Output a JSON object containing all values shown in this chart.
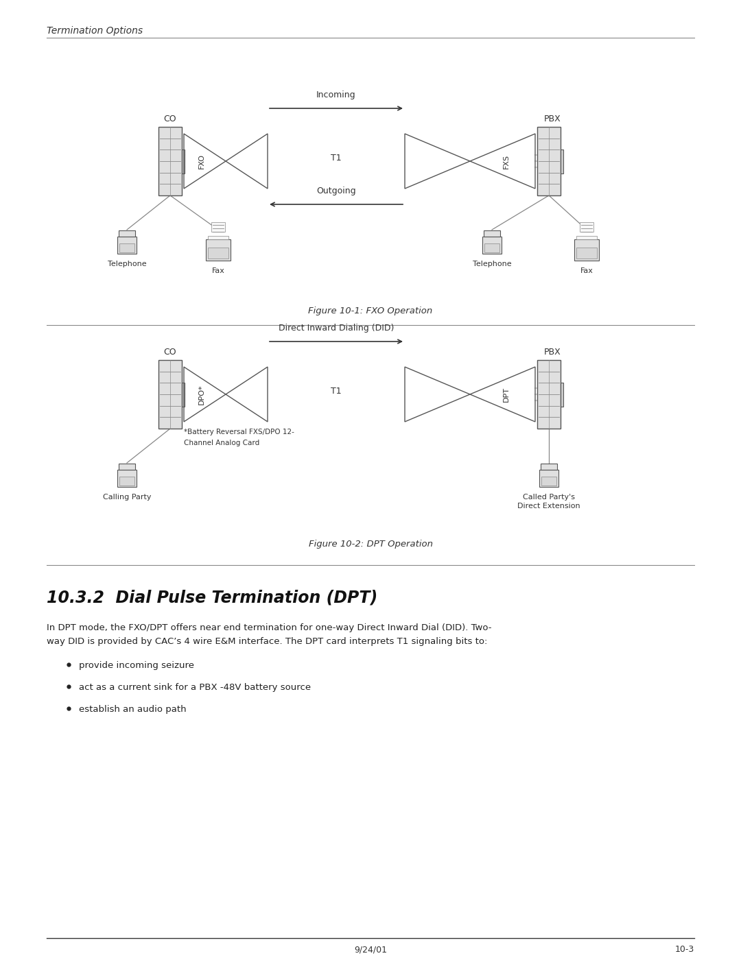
{
  "page_title": "Termination Options",
  "fig1_caption": "Figure 10-1: FXO Operation",
  "fig2_caption": "Figure 10-2: DPT Operation",
  "section_title": "10.3.2  Dial Pulse Termination (DPT)",
  "body_line1": "In DPT mode, the FXO/DPT offers near end termination for one-way Direct Inward Dial (DID). Two-",
  "body_line2": "way DID is provided by CAC’s 4 wire E&M interface. The DPT card interprets T1 signaling bits to:",
  "bullet1": "provide incoming seizure",
  "bullet2": "act as a current sink for a PBX -48V battery source",
  "bullet3": "establish an audio path",
  "footer_left": "9/24/01",
  "footer_right": "10-3",
  "bg_color": "#ffffff",
  "text_color": "#222222",
  "gray": "#888888",
  "light_gray": "#cccccc",
  "dark": "#333333",
  "box_fill": "#e0e0e0",
  "box_edge": "#555555"
}
